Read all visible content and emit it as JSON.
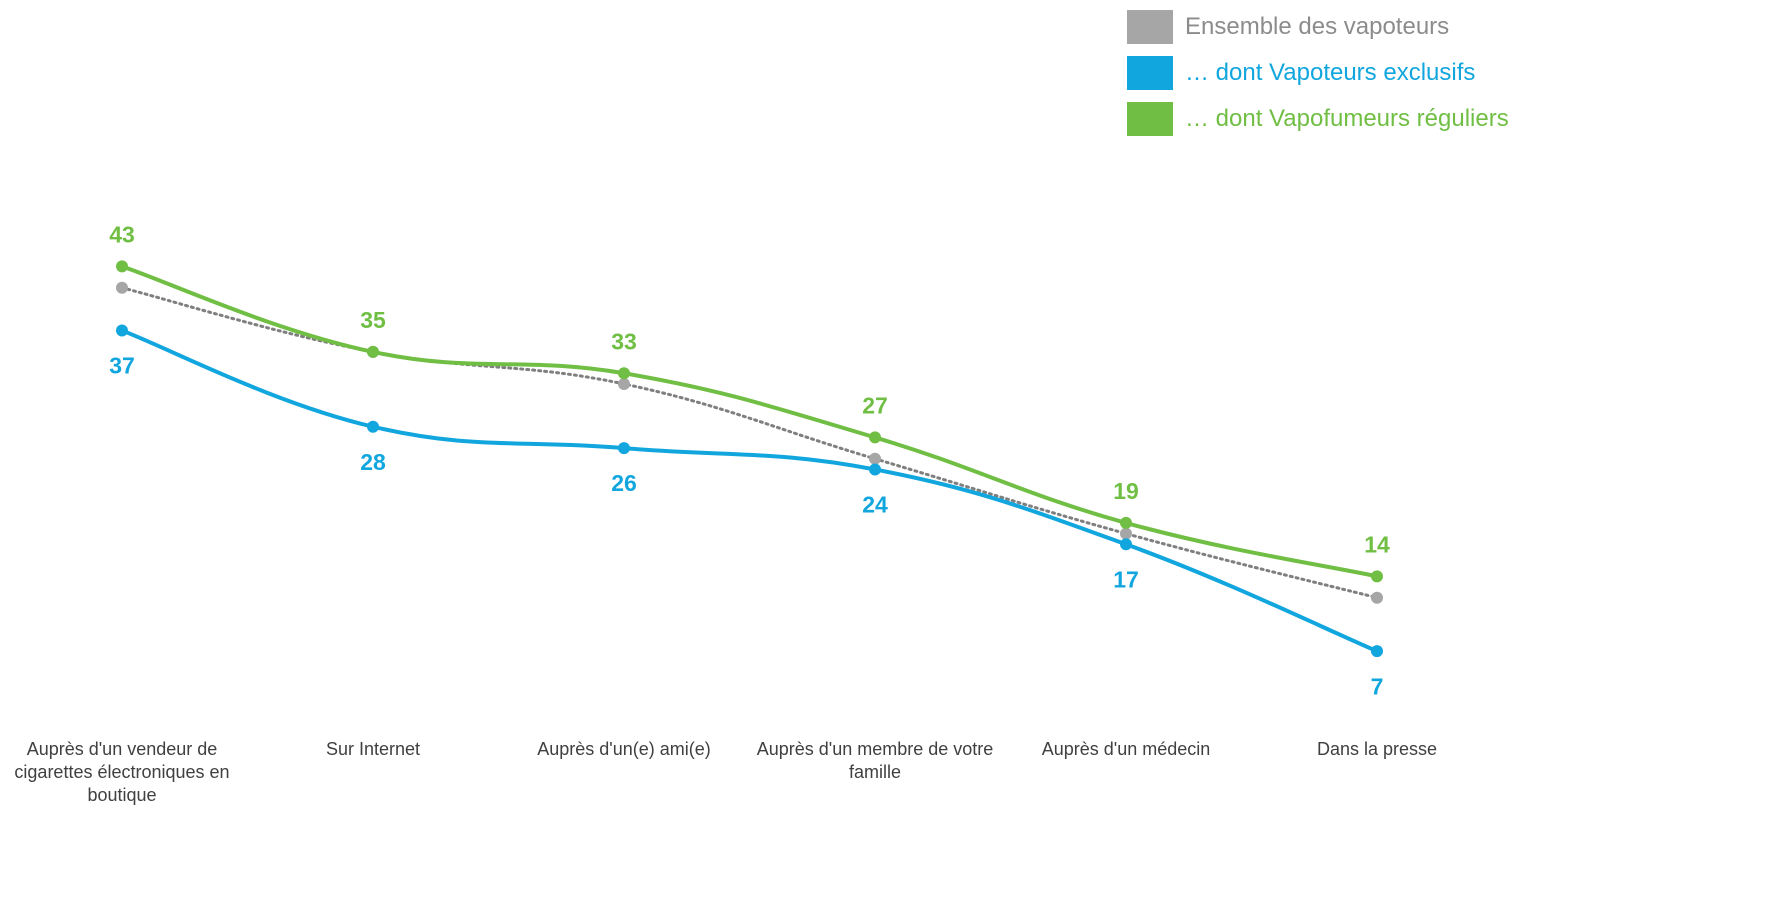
{
  "chart_data": {
    "type": "line",
    "categories": [
      "Auprès d'un vendeur de cigarettes électroniques en boutique",
      "Sur Internet",
      "Auprès d'un(e) ami(e)",
      "Auprès d'un membre de votre famille",
      "Auprès d'un médecin",
      "Dans la presse"
    ],
    "series": [
      {
        "name": "Ensemble des vapoteurs",
        "color": "#a6a6a6",
        "values": [
          41,
          35,
          32,
          25,
          18,
          12
        ],
        "style": "dotted",
        "line_color": "#7f7f7f"
      },
      {
        "name": "… dont Vapoteurs exclusifs",
        "color": "#12a6de",
        "values": [
          37,
          28,
          26,
          24,
          17,
          7
        ],
        "labels": "below"
      },
      {
        "name": "… dont Vapofumeurs réguliers",
        "color": "#70bf44",
        "values": [
          43,
          35,
          33,
          27,
          19,
          14
        ],
        "labels": "above"
      }
    ],
    "ylim": [
      0,
      45
    ]
  }
}
